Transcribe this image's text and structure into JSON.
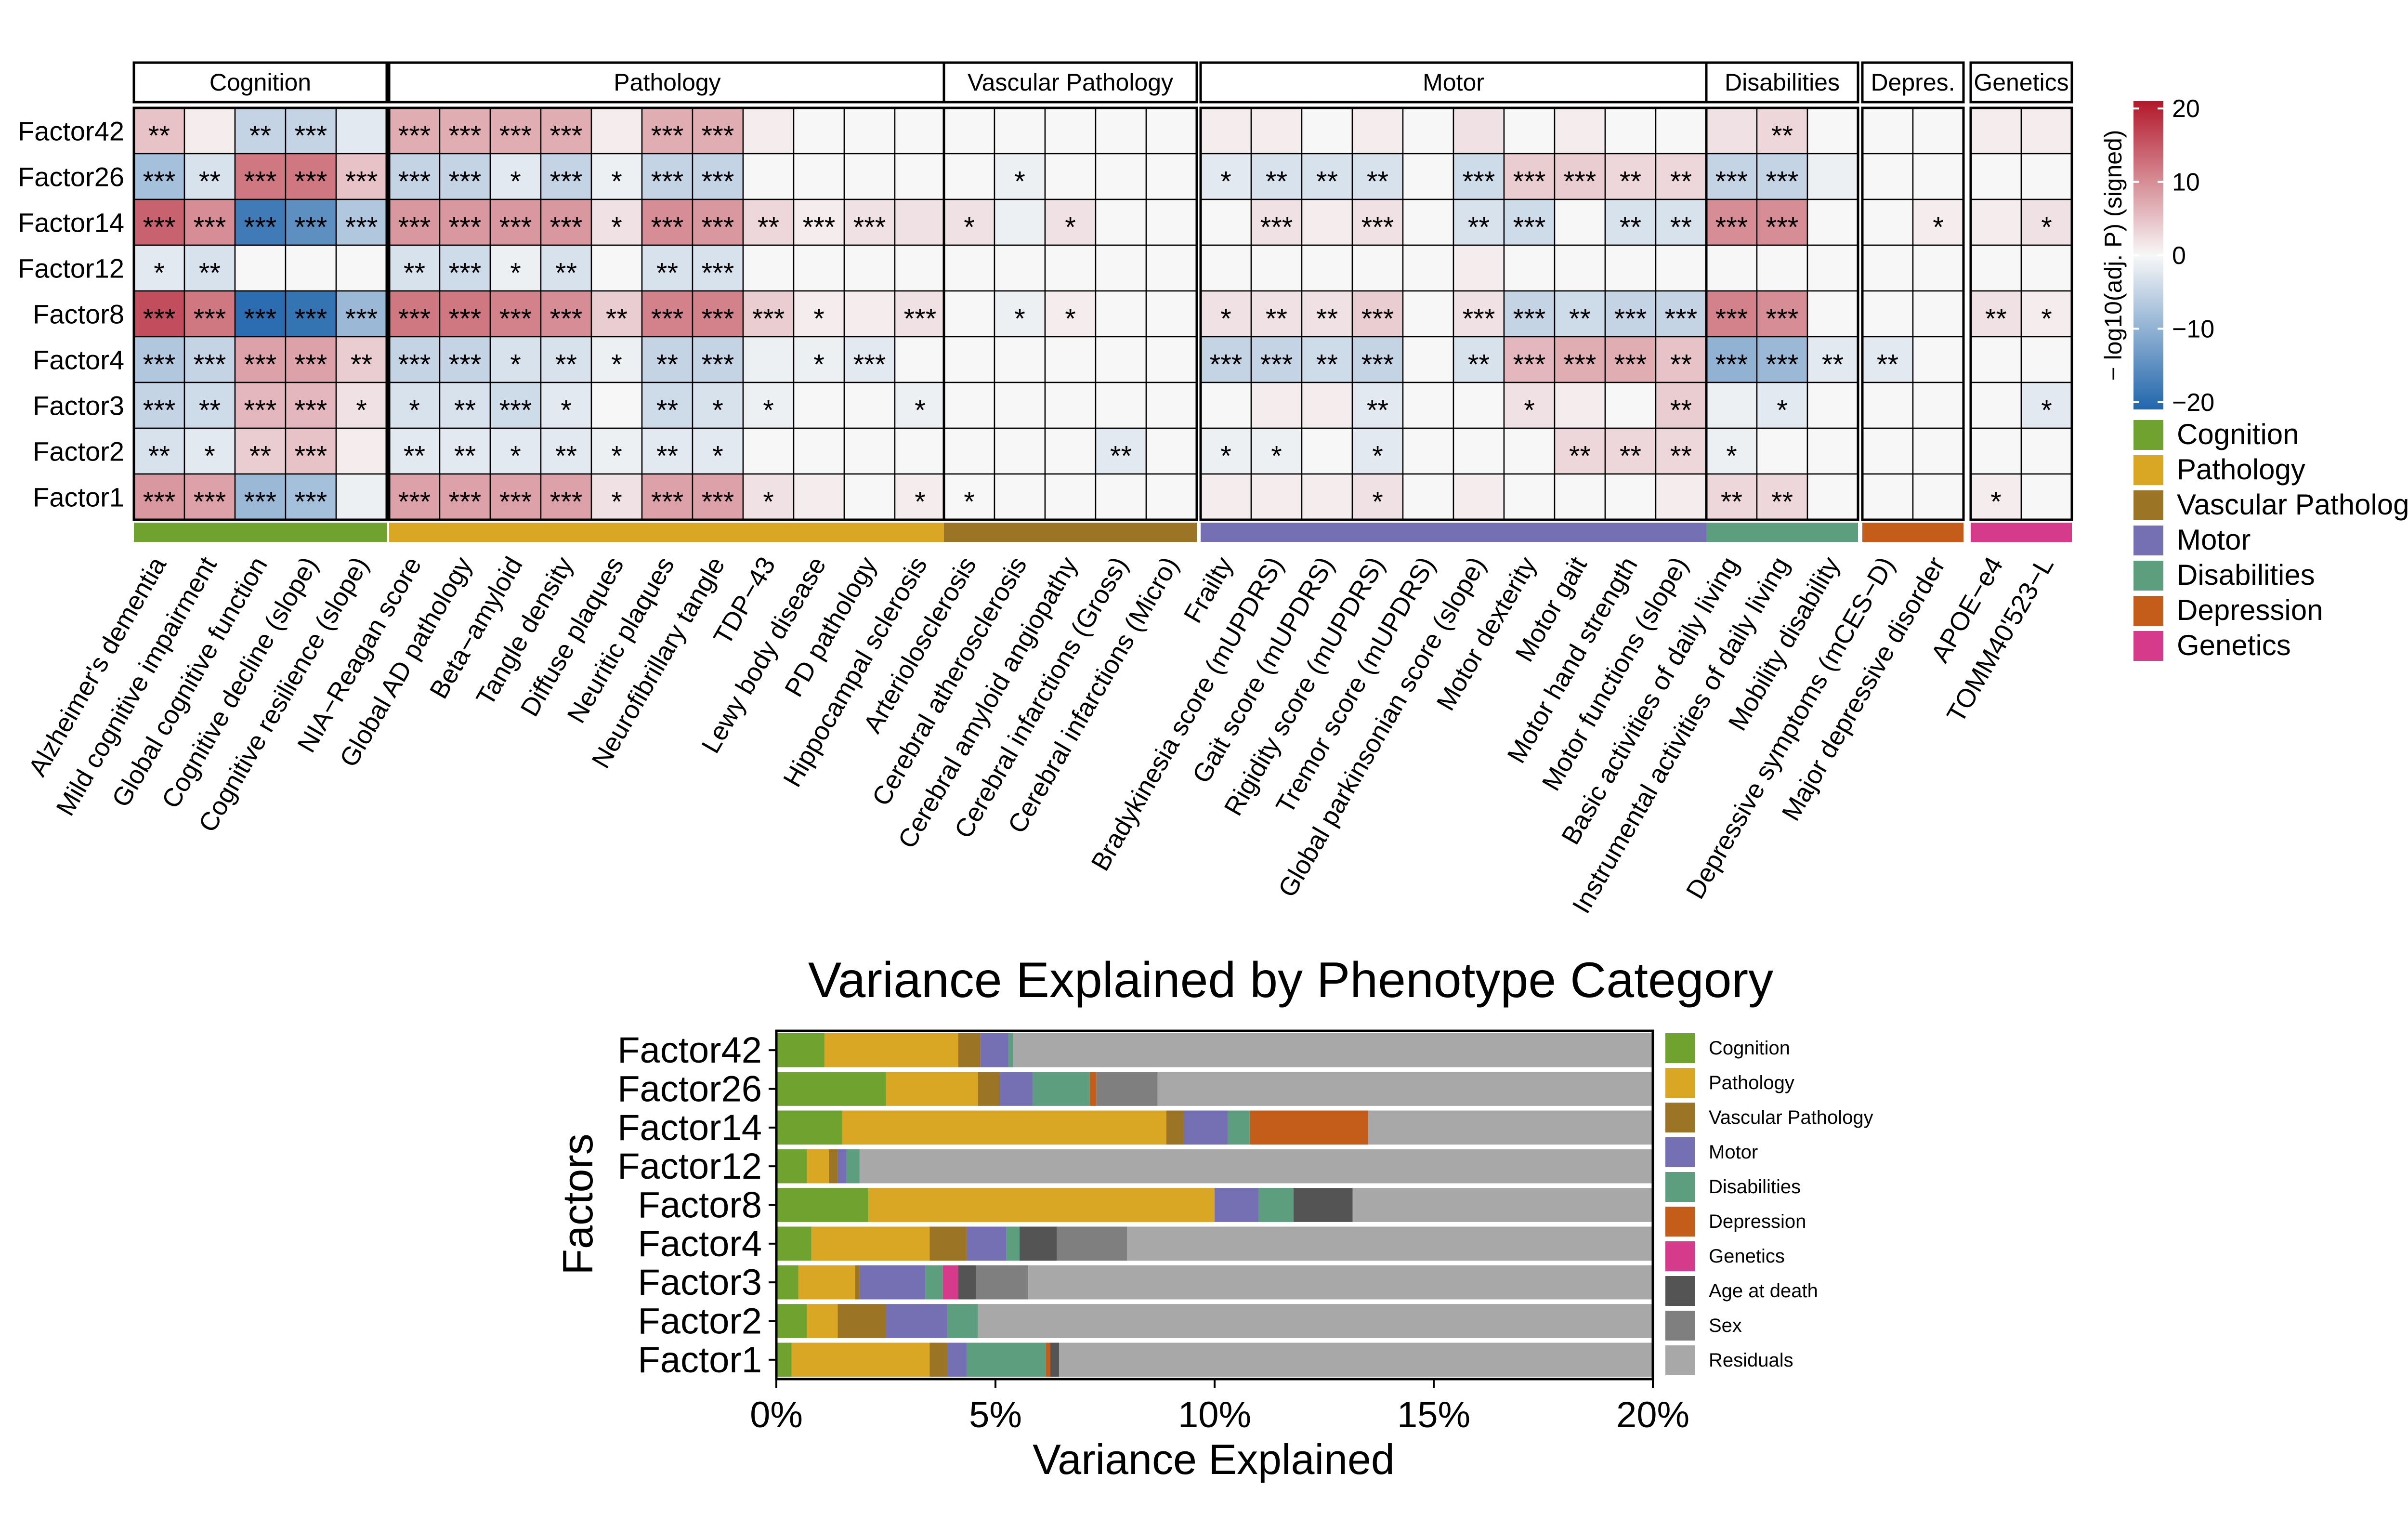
{
  "chart_data": [
    {
      "type": "heatmap",
      "title": "",
      "xlabel": "",
      "ylabel": "",
      "colorbar": {
        "label": "− log10(adj. P) (signed)",
        "ticks": [
          20,
          10,
          0,
          -10,
          -20
        ],
        "tick_labels": [
          "20",
          "10",
          "0",
          "−10",
          "−20"
        ],
        "range": [
          -21,
          21
        ],
        "colors": {
          "neg": "#2166ac",
          "zero": "#f7f7f7",
          "pos": "#b2182b"
        }
      },
      "rows": [
        "Factor42",
        "Factor26",
        "Factor14",
        "Factor12",
        "Factor8",
        "Factor4",
        "Factor3",
        "Factor2",
        "Factor1"
      ],
      "groups": [
        {
          "name": "Cognition",
          "legend": "Cognition",
          "color": "#70a22f",
          "columns": [
            "Alzheimer's dementia",
            "Mild cognitive impairment",
            "Global cognitive function",
            "Cognitive decline (slope)",
            "Cognitive resilience (slope)"
          ]
        },
        {
          "name": "Pathology",
          "legend": "Pathology",
          "color": "#d9a724",
          "columns": [
            "NIA−Reagan score",
            "Global AD pathology",
            "Beta−amyloid",
            "Tangle density",
            "Diffuse plaques",
            "Neuritic plaques",
            "Neurofibrillary tangle",
            "TDP−43",
            "Lewy body disease",
            "PD pathology",
            "Hippocampal sclerosis"
          ]
        },
        {
          "name": "Vascular Pathology",
          "legend": "Vascular Pathology",
          "color": "#9b7426",
          "columns": [
            "Arteriolosclerosis",
            "Cerebral atherosclerosis",
            "Cerebral amyloid angiopathy",
            "Cerebral infarctions (Gross)",
            "Cerebral infarctions (Micro)"
          ]
        },
        {
          "name": "Motor",
          "legend": "Motor",
          "color": "#7570b3",
          "columns": [
            "Frailty",
            "Bradykinesia score (mUPDRS)",
            "Gait score (mUPDRS)",
            "Rigidity score (mUPDRS)",
            "Tremor score (mUPDRS)",
            "Global parkinsonian score (slope)",
            "Motor dexterity",
            "Motor gait",
            "Motor hand strength",
            "Motor functions (slope)"
          ]
        },
        {
          "name": "Disabilities",
          "legend": "Disabilities",
          "color": "#5c9e7d",
          "columns": [
            "Basic activities of daily living",
            "Instrumental activities of daily living",
            "Mobility disability"
          ]
        },
        {
          "name": "Depres.",
          "legend": "Depression",
          "color": "#c45c1a",
          "columns": [
            "Depressive symptoms (mCES−D)",
            "Major depressive disorder"
          ]
        },
        {
          "name": "Genetics",
          "legend": "Genetics",
          "color": "#d63a8a",
          "columns": [
            "APOE−e4",
            "TOMM40'523−L"
          ]
        }
      ],
      "values": [
        [
          5,
          1,
          -5,
          -5,
          -2,
          7,
          7,
          7,
          7,
          1,
          7,
          7,
          1,
          0,
          0,
          0,
          0,
          0,
          0,
          0,
          0,
          1,
          1,
          0,
          1,
          0,
          2,
          0,
          1,
          0,
          0,
          2,
          3,
          0,
          0,
          0,
          1,
          1
        ],
        [
          -8,
          -3,
          12,
          12,
          5,
          -5,
          -5,
          -2,
          -5,
          -1,
          -5,
          -5,
          0,
          0,
          0,
          0,
          0,
          -1,
          0,
          0,
          0,
          -2,
          -3,
          -3,
          -3,
          0,
          -4,
          4,
          4,
          3,
          3,
          -5,
          -5,
          -1,
          0,
          0,
          0,
          0
        ],
        [
          14,
          10,
          -18,
          -15,
          -7,
          9,
          9,
          9,
          9,
          2,
          10,
          9,
          3,
          1,
          2,
          2,
          2,
          -1,
          2,
          0,
          0,
          0,
          2,
          1,
          2,
          0,
          -3,
          -4,
          0,
          -3,
          -3,
          10,
          10,
          0,
          0,
          1,
          1,
          2
        ],
        [
          -2,
          -3,
          0,
          0,
          0,
          -3,
          -4,
          -1,
          -3,
          0,
          -3,
          -3,
          0,
          0,
          0,
          0,
          0,
          0,
          0,
          0,
          0,
          0,
          0,
          0,
          0,
          0,
          1,
          0,
          0,
          0,
          0,
          0,
          0,
          0,
          0,
          0,
          0,
          0
        ],
        [
          16,
          12,
          -20,
          -19,
          -9,
          12,
          12,
          11,
          10,
          4,
          11,
          11,
          4,
          1,
          1,
          2,
          0,
          -1,
          1,
          0,
          0,
          2,
          2,
          2,
          4,
          0,
          2,
          -5,
          -4,
          -5,
          -5,
          11,
          10,
          0,
          0,
          0,
          2,
          1
        ],
        [
          -7,
          -5,
          8,
          8,
          4,
          -5,
          -5,
          -3,
          -3,
          -1,
          -5,
          -5,
          -1,
          -1,
          -2,
          0,
          0,
          0,
          0,
          0,
          0,
          -5,
          -5,
          -4,
          -5,
          0,
          -3,
          6,
          7,
          7,
          5,
          -10,
          -9,
          -2,
          -2,
          0,
          0,
          0
        ],
        [
          -5,
          -4,
          6,
          6,
          2,
          -3,
          -3,
          -4,
          -2,
          0,
          -4,
          -3,
          -1,
          0,
          0,
          -1,
          0,
          0,
          0,
          0,
          0,
          0,
          1,
          1,
          -2,
          0,
          0,
          2,
          1,
          0,
          4,
          -1,
          -2,
          0,
          0,
          0,
          0,
          -2
        ],
        [
          -3,
          -2,
          4,
          5,
          1,
          -2,
          -2,
          -2,
          -2,
          -1,
          -2,
          -2,
          0,
          0,
          0,
          0,
          0,
          0,
          0,
          -2,
          0,
          -1,
          -1,
          0,
          -2,
          0,
          0,
          0,
          3,
          3,
          3,
          -1,
          0,
          0,
          0,
          0,
          0,
          0
        ],
        [
          9,
          8,
          -9,
          -8,
          -1,
          8,
          8,
          8,
          8,
          2,
          8,
          8,
          2,
          1,
          0,
          1,
          0,
          0,
          0,
          0,
          0,
          1,
          1,
          1,
          2,
          0,
          1,
          0,
          0,
          0,
          1,
          3,
          3,
          0,
          0,
          0,
          1,
          0
        ]
      ],
      "stars": [
        [
          "**",
          "",
          "**",
          "***",
          "",
          "***",
          "***",
          "***",
          "***",
          "",
          "***",
          "***",
          "",
          "",
          "",
          "",
          "",
          "",
          "",
          "",
          "",
          "",
          "",
          "",
          "",
          "",
          "",
          "",
          "",
          "",
          "",
          "",
          "**",
          "",
          "",
          "",
          "",
          ""
        ],
        [
          "***",
          "**",
          "***",
          "***",
          "***",
          "***",
          "***",
          "*",
          "***",
          "*",
          "***",
          "***",
          "",
          "",
          "",
          "",
          "",
          "*",
          "",
          "",
          "",
          "*",
          "**",
          "**",
          "**",
          "",
          "***",
          "***",
          "***",
          "**",
          "**",
          "***",
          "***",
          "",
          "",
          "",
          "",
          ""
        ],
        [
          "***",
          "***",
          "***",
          "***",
          "***",
          "***",
          "***",
          "***",
          "***",
          "*",
          "***",
          "***",
          "**",
          "***",
          "***",
          "",
          "*",
          "",
          "*",
          "",
          "",
          "",
          "***",
          "",
          "***",
          "",
          "**",
          "***",
          "",
          "**",
          "**",
          "***",
          "***",
          "",
          "",
          "*",
          "",
          "*"
        ],
        [
          "*",
          "**",
          "",
          "",
          "",
          "**",
          "***",
          "*",
          "**",
          "",
          "**",
          "***",
          "",
          "",
          "",
          "",
          "",
          "",
          "",
          "",
          "",
          "",
          "",
          "",
          "",
          "",
          "",
          "",
          "",
          "",
          "",
          "",
          "",
          "",
          "",
          "",
          "",
          ""
        ],
        [
          "***",
          "***",
          "***",
          "***",
          "***",
          "***",
          "***",
          "***",
          "***",
          "**",
          "***",
          "***",
          "***",
          "*",
          "",
          "***",
          "",
          "*",
          "*",
          "",
          "",
          "*",
          "**",
          "**",
          "***",
          "",
          "***",
          "***",
          "**",
          "***",
          "***",
          "***",
          "***",
          "",
          "",
          "",
          "**",
          "*"
        ],
        [
          "***",
          "***",
          "***",
          "***",
          "**",
          "***",
          "***",
          "*",
          "**",
          "*",
          "**",
          "***",
          "",
          "*",
          "***",
          "",
          "",
          "",
          "",
          "",
          "",
          "***",
          "***",
          "**",
          "***",
          "",
          "**",
          "***",
          "***",
          "***",
          "**",
          "***",
          "***",
          "**",
          "**",
          "",
          "",
          ""
        ],
        [
          "***",
          "**",
          "***",
          "***",
          "*",
          "*",
          "**",
          "***",
          "*",
          "",
          "**",
          "*",
          "*",
          "",
          "",
          "*",
          "",
          "",
          "",
          "",
          "",
          "",
          "",
          "",
          "**",
          "",
          "",
          "*",
          "",
          "",
          "**",
          "",
          "*",
          "",
          "",
          "",
          "",
          "*"
        ],
        [
          "**",
          "*",
          "**",
          "***",
          "",
          "**",
          "**",
          "*",
          "**",
          "*",
          "**",
          "*",
          "",
          "",
          "",
          "",
          "",
          "",
          "",
          "**",
          "",
          "*",
          "*",
          "",
          "*",
          "",
          "",
          "",
          "**",
          "**",
          "**",
          "*",
          "",
          "",
          "",
          "",
          "",
          ""
        ],
        [
          "***",
          "***",
          "***",
          "***",
          "",
          "***",
          "***",
          "***",
          "***",
          "*",
          "***",
          "***",
          "*",
          "",
          "",
          "*",
          "*",
          "",
          "",
          "",
          "",
          "",
          "",
          "",
          "*",
          "",
          "",
          "",
          "",
          "",
          "",
          "**",
          "**",
          "",
          "",
          "",
          "*",
          ""
        ]
      ]
    },
    {
      "type": "bar",
      "orientation": "horizontal",
      "stacked": true,
      "title": "Variance Explained by Phenotype Category",
      "xlabel": "Variance Explained",
      "ylabel": "Factors",
      "xlim": [
        0,
        20
      ],
      "xticks": [
        0,
        5,
        10,
        15,
        20
      ],
      "xtick_labels": [
        "0%",
        "5%",
        "10%",
        "15%",
        "20%"
      ],
      "categories": [
        "Factor42",
        "Factor26",
        "Factor14",
        "Factor12",
        "Factor8",
        "Factor4",
        "Factor3",
        "Factor2",
        "Factor1"
      ],
      "series": [
        {
          "name": "Cognition",
          "color": "#70a22f",
          "values": [
            1.1,
            2.5,
            1.5,
            0.7,
            2.1,
            0.8,
            0.5,
            0.7,
            0.35
          ]
        },
        {
          "name": "Pathology",
          "color": "#d9a724",
          "values": [
            3.05,
            2.1,
            7.4,
            0.5,
            7.9,
            2.7,
            1.3,
            0.7,
            3.15
          ]
        },
        {
          "name": "Vascular Pathology",
          "color": "#9b7426",
          "values": [
            0.5,
            0.5,
            0.4,
            0.2,
            0.0,
            0.85,
            0.1,
            1.1,
            0.4
          ]
        },
        {
          "name": "Motor",
          "color": "#7570b3",
          "values": [
            0.65,
            0.75,
            1.0,
            0.2,
            1.0,
            0.9,
            1.5,
            1.4,
            0.45
          ]
        },
        {
          "name": "Disabilities",
          "color": "#5c9e7d",
          "values": [
            0.1,
            1.3,
            0.5,
            0.3,
            0.8,
            0.3,
            0.4,
            0.7,
            1.8
          ]
        },
        {
          "name": "Depression",
          "color": "#c45c1a",
          "values": [
            0.0,
            0.15,
            2.7,
            0.0,
            0.0,
            0.0,
            0.0,
            0.0,
            0.1
          ]
        },
        {
          "name": "Genetics",
          "color": "#d63a8a",
          "values": [
            0.0,
            0.0,
            0.0,
            0.0,
            0.0,
            0.0,
            0.35,
            0.0,
            0.0
          ]
        },
        {
          "name": "Age at death",
          "color": "#545454",
          "values": [
            0.0,
            0.0,
            0.0,
            0.0,
            1.35,
            0.85,
            0.4,
            0.0,
            0.2
          ]
        },
        {
          "name": "Sex",
          "color": "#7f7f7f",
          "values": [
            0.0,
            1.4,
            0.0,
            0.0,
            0.0,
            1.6,
            1.2,
            0.0,
            0.0
          ]
        },
        {
          "name": "Residuals",
          "color": "#a8a8a8",
          "values": [
            14.6,
            11.3,
            6.5,
            18.1,
            6.85,
            12.0,
            14.25,
            15.4,
            13.55
          ]
        }
      ]
    }
  ]
}
